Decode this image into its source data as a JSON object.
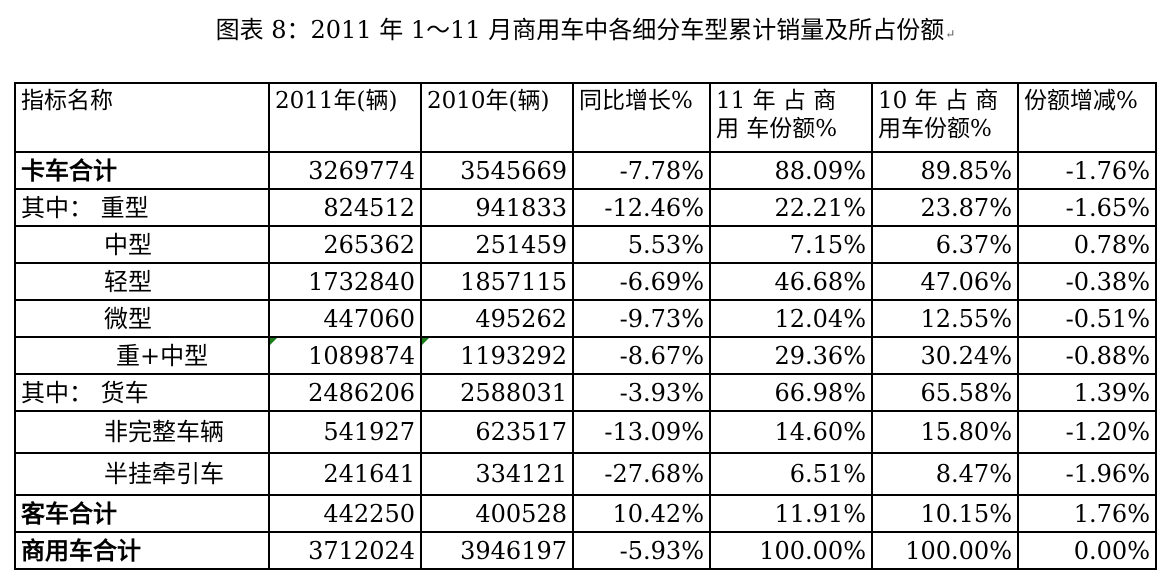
{
  "caption": "图表 8：2011 年 1～11 月商用车中各细分车型累计销量及所占份额",
  "paragraph_mark": "↵",
  "headers": [
    "指标名称",
    "2011年(辆)",
    "2010年(辆)",
    "同比增长%",
    "11 年 占 商 用 车份额%",
    "10 年 占 商 用车份额%",
    "份额增减%"
  ],
  "rows": [
    {
      "label": "卡车合计",
      "v2011": "3269774",
      "v2010": "3545669",
      "yoy": "-7.78%",
      "share11": "88.09%",
      "share10": "89.85%",
      "delta": "-1.76%"
    },
    {
      "label": "其中：  重型",
      "v2011": "824512",
      "v2010": "941833",
      "yoy": "-12.46%",
      "share11": "22.21%",
      "share10": "23.87%",
      "delta": "-1.65%"
    },
    {
      "label": "中型",
      "v2011": "265362",
      "v2010": "251459",
      "yoy": "5.53%",
      "share11": "7.15%",
      "share10": "6.37%",
      "delta": "0.78%"
    },
    {
      "label": "轻型",
      "v2011": "1732840",
      "v2010": "1857115",
      "yoy": "-6.69%",
      "share11": "46.68%",
      "share10": "47.06%",
      "delta": "-0.38%"
    },
    {
      "label": "微型",
      "v2011": "447060",
      "v2010": "495262",
      "yoy": "-9.73%",
      "share11": "12.04%",
      "share10": "12.55%",
      "delta": "-0.51%"
    },
    {
      "label": "重+中型",
      "v2011": "1089874",
      "v2010": "1193292",
      "yoy": "-8.67%",
      "share11": "29.36%",
      "share10": "30.24%",
      "delta": "-0.88%"
    },
    {
      "label": "其中：  货车",
      "v2011": "2486206",
      "v2010": "2588031",
      "yoy": "-3.93%",
      "share11": "66.98%",
      "share10": "65.58%",
      "delta": "1.39%"
    },
    {
      "label": "非完整车辆",
      "v2011": "541927",
      "v2010": "623517",
      "yoy": "-13.09%",
      "share11": "14.60%",
      "share10": "15.80%",
      "delta": "-1.20%"
    },
    {
      "label": "半挂牵引车",
      "v2011": "241641",
      "v2010": "334121",
      "yoy": "-27.68%",
      "share11": "6.51%",
      "share10": "8.47%",
      "delta": "-1.96%"
    },
    {
      "label": "客车合计",
      "v2011": "442250",
      "v2010": "400528",
      "yoy": "10.42%",
      "share11": "11.91%",
      "share10": "10.15%",
      "delta": "1.76%"
    },
    {
      "label": "商用车合计",
      "v2011": "3712024",
      "v2010": "3946197",
      "yoy": "-5.93%",
      "share11": "100.00%",
      "share10": "100.00%",
      "delta": "0.00%"
    }
  ],
  "colors": {
    "error_indicator": "#1a7f1a",
    "border": "#000000"
  }
}
